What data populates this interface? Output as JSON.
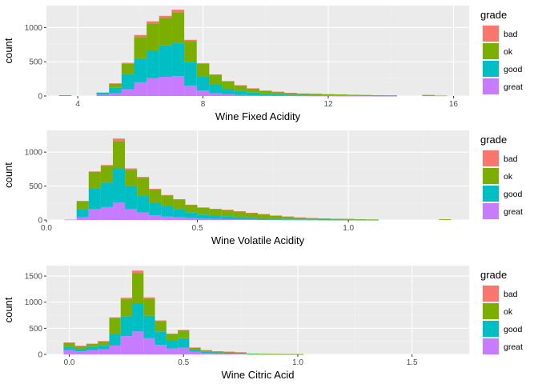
{
  "chart_data": [
    {
      "type": "bar",
      "stacked": true,
      "title": "",
      "xlabel": "Wine Fixed Acidity",
      "ylabel": "count",
      "xlim": [
        3.0,
        16.5
      ],
      "ylim": [
        0,
        1320
      ],
      "xticks": [
        4,
        8,
        12,
        16
      ],
      "xtick_labels": [
        "4",
        "8",
        "12",
        "16"
      ],
      "yticks": [
        0,
        500,
        1000
      ],
      "ytick_labels": [
        "0",
        "500",
        "1000"
      ],
      "bin_width": 0.4,
      "x": [
        3.6,
        4.0,
        4.4,
        4.8,
        5.2,
        5.6,
        6.0,
        6.4,
        6.8,
        7.2,
        7.6,
        8.0,
        8.4,
        8.8,
        9.2,
        9.6,
        10.0,
        10.4,
        10.8,
        11.2,
        11.6,
        12.0,
        12.4,
        12.8,
        13.2,
        13.6,
        14.0,
        14.4,
        14.8,
        15.2,
        15.6,
        16.0
      ],
      "series": [
        {
          "name": "great",
          "values": [
            0,
            0,
            0,
            20,
            40,
            100,
            200,
            260,
            280,
            290,
            150,
            80,
            40,
            25,
            15,
            10,
            7,
            6,
            5,
            4,
            3,
            3,
            2,
            2,
            2,
            1,
            1,
            0,
            0,
            5,
            0,
            0
          ]
        },
        {
          "name": "good",
          "values": [
            10,
            0,
            0,
            30,
            80,
            220,
            350,
            400,
            460,
            480,
            350,
            200,
            130,
            80,
            60,
            40,
            25,
            20,
            15,
            12,
            10,
            8,
            8,
            6,
            5,
            4,
            4,
            0,
            0,
            5,
            0,
            0
          ]
        },
        {
          "name": "ok",
          "values": [
            0,
            0,
            0,
            0,
            60,
            150,
            310,
            400,
            400,
            450,
            300,
            190,
            140,
            110,
            80,
            60,
            45,
            35,
            25,
            20,
            20,
            15,
            13,
            10,
            8,
            6,
            5,
            0,
            0,
            5,
            5,
            0
          ]
        },
        {
          "name": "bad",
          "values": [
            0,
            0,
            0,
            0,
            5,
            15,
            30,
            30,
            30,
            40,
            20,
            10,
            5,
            3,
            2,
            2,
            1,
            1,
            1,
            0,
            0,
            0,
            0,
            0,
            0,
            0,
            0,
            0,
            0,
            0,
            0,
            0
          ]
        }
      ]
    },
    {
      "type": "bar",
      "stacked": true,
      "title": "",
      "xlabel": "Wine Volatile Acidity",
      "ylabel": "count",
      "xlim": [
        0.0,
        1.4
      ],
      "ylim": [
        0,
        1320
      ],
      "xticks": [
        0.0,
        0.5,
        1.0
      ],
      "xtick_labels": [
        "0.0",
        "0.5",
        "1.0"
      ],
      "yticks": [
        0,
        500,
        1000
      ],
      "ytick_labels": [
        "0",
        "500",
        "1000"
      ],
      "bin_width": 0.04,
      "x": [
        0.08,
        0.12,
        0.16,
        0.2,
        0.24,
        0.28,
        0.32,
        0.36,
        0.4,
        0.44,
        0.48,
        0.52,
        0.56,
        0.6,
        0.64,
        0.68,
        0.72,
        0.76,
        0.8,
        0.84,
        0.88,
        0.92,
        0.96,
        1.0,
        1.04,
        1.08,
        1.12,
        1.16,
        1.2,
        1.24,
        1.28,
        1.32
      ],
      "series": [
        {
          "name": "great",
          "values": [
            5,
            40,
            160,
            190,
            260,
            160,
            110,
            70,
            50,
            40,
            30,
            20,
            15,
            12,
            10,
            8,
            6,
            5,
            4,
            3,
            2,
            2,
            1,
            1,
            1,
            1,
            0,
            0,
            0,
            0,
            0,
            0
          ]
        },
        {
          "name": "good",
          "values": [
            0,
            120,
            300,
            360,
            500,
            340,
            250,
            190,
            150,
            120,
            80,
            60,
            55,
            45,
            35,
            25,
            18,
            14,
            10,
            8,
            6,
            4,
            4,
            3,
            3,
            2,
            0,
            0,
            0,
            0,
            0,
            0
          ]
        },
        {
          "name": "ok",
          "values": [
            0,
            120,
            250,
            250,
            400,
            240,
            260,
            190,
            160,
            140,
            110,
            100,
            90,
            90,
            80,
            70,
            60,
            45,
            35,
            25,
            20,
            15,
            12,
            12,
            8,
            5,
            0,
            0,
            0,
            0,
            0,
            10
          ]
        },
        {
          "name": "bad",
          "values": [
            0,
            0,
            5,
            10,
            40,
            20,
            15,
            10,
            8,
            7,
            5,
            5,
            4,
            4,
            4,
            3,
            3,
            2,
            2,
            1,
            1,
            1,
            1,
            1,
            0,
            0,
            0,
            0,
            0,
            0,
            0,
            0
          ]
        }
      ]
    },
    {
      "type": "bar",
      "stacked": true,
      "title": "",
      "xlabel": "Wine Citric Acid",
      "ylabel": "count",
      "xlim": [
        -0.1,
        1.75
      ],
      "ylim": [
        0,
        1700
      ],
      "xticks": [
        0.0,
        0.5,
        1.0,
        1.5
      ],
      "xtick_labels": [
        "0.0",
        "0.5",
        "1.0",
        "1.5"
      ],
      "yticks": [
        0,
        500,
        1000,
        1500
      ],
      "ytick_labels": [
        "0",
        "500",
        "1000",
        "1500"
      ],
      "bin_width": 0.05,
      "x": [
        0.0,
        0.05,
        0.1,
        0.15,
        0.2,
        0.25,
        0.3,
        0.35,
        0.4,
        0.45,
        0.5,
        0.55,
        0.6,
        0.65,
        0.7,
        0.75,
        0.8,
        0.85,
        0.9,
        0.95,
        1.0
      ],
      "series": [
        {
          "name": "great",
          "values": [
            80,
            60,
            80,
            100,
            170,
            350,
            440,
            310,
            180,
            110,
            130,
            50,
            25,
            18,
            15,
            10,
            5,
            3,
            2,
            1,
            0
          ]
        },
        {
          "name": "good",
          "values": [
            70,
            40,
            60,
            80,
            220,
            380,
            540,
            430,
            260,
            150,
            180,
            40,
            25,
            20,
            15,
            12,
            5,
            4,
            3,
            2,
            1
          ]
        },
        {
          "name": "ok",
          "values": [
            70,
            60,
            60,
            70,
            300,
            330,
            580,
            330,
            200,
            130,
            150,
            40,
            30,
            20,
            20,
            18,
            6,
            5,
            4,
            3,
            5
          ]
        },
        {
          "name": "bad",
          "values": [
            10,
            5,
            5,
            5,
            20,
            25,
            45,
            20,
            10,
            7,
            8,
            2,
            1,
            1,
            1,
            1,
            0,
            0,
            0,
            0,
            0
          ]
        }
      ]
    }
  ],
  "legend": {
    "title": "grade",
    "items": [
      {
        "label": "bad",
        "color": "#F8766D"
      },
      {
        "label": "ok",
        "color": "#7CAE00"
      },
      {
        "label": "good",
        "color": "#00BFC4"
      },
      {
        "label": "great",
        "color": "#C77CFF"
      }
    ]
  },
  "colors": {
    "panel_background": "#EBEBEB",
    "grid_major": "#FFFFFF",
    "grid_minor": "#F2F2F2",
    "bad": "#F8766D",
    "ok": "#7CAE00",
    "good": "#00BFC4",
    "great": "#C77CFF"
  }
}
